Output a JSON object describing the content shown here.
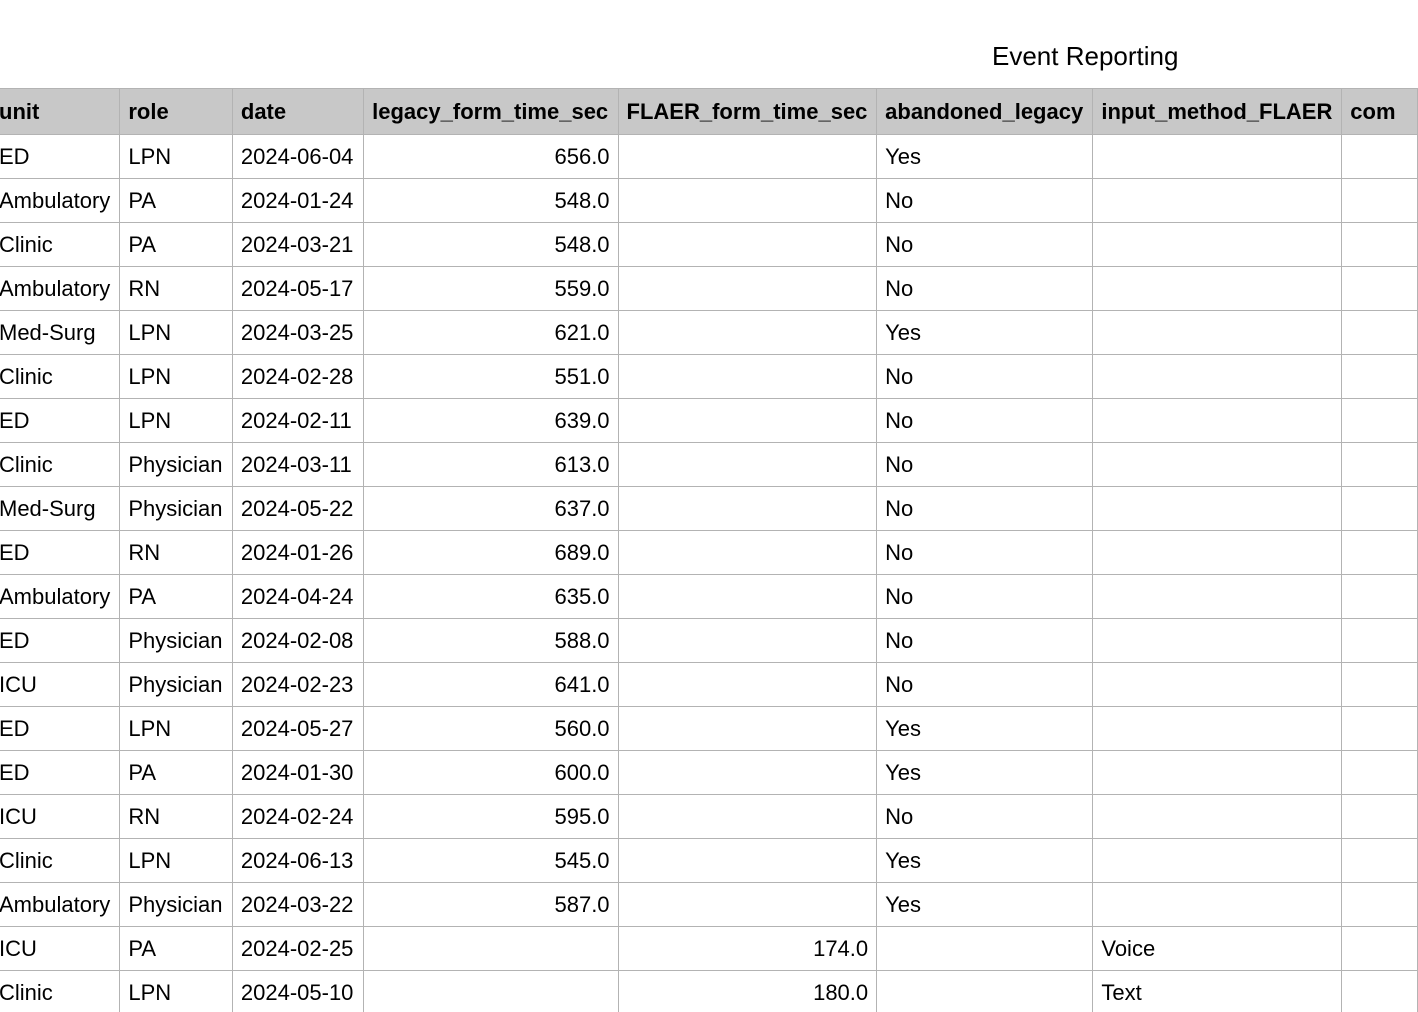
{
  "sheet": {
    "title": "Event Reporting"
  },
  "table": {
    "headers": {
      "unit": "unit",
      "role": "role",
      "date": "date",
      "legacy": "legacy_form_time_sec",
      "flaer": "FLAER_form_time_sec",
      "abandoned": "abandoned_legacy",
      "input": "input_method_FLAER",
      "comments": "com"
    },
    "rows": [
      {
        "unit": "ED",
        "role": "LPN",
        "date": "2024-06-04",
        "legacy": "656.0",
        "flaer": "",
        "abandoned": "Yes",
        "input": "",
        "comments": ""
      },
      {
        "unit": "Ambulatory",
        "role": "PA",
        "date": "2024-01-24",
        "legacy": "548.0",
        "flaer": "",
        "abandoned": "No",
        "input": "",
        "comments": ""
      },
      {
        "unit": "Clinic",
        "role": "PA",
        "date": "2024-03-21",
        "legacy": "548.0",
        "flaer": "",
        "abandoned": "No",
        "input": "",
        "comments": ""
      },
      {
        "unit": "Ambulatory",
        "role": "RN",
        "date": "2024-05-17",
        "legacy": "559.0",
        "flaer": "",
        "abandoned": "No",
        "input": "",
        "comments": ""
      },
      {
        "unit": "Med-Surg",
        "role": "LPN",
        "date": "2024-03-25",
        "legacy": "621.0",
        "flaer": "",
        "abandoned": "Yes",
        "input": "",
        "comments": ""
      },
      {
        "unit": "Clinic",
        "role": "LPN",
        "date": "2024-02-28",
        "legacy": "551.0",
        "flaer": "",
        "abandoned": "No",
        "input": "",
        "comments": ""
      },
      {
        "unit": "ED",
        "role": "LPN",
        "date": "2024-02-11",
        "legacy": "639.0",
        "flaer": "",
        "abandoned": "No",
        "input": "",
        "comments": ""
      },
      {
        "unit": "Clinic",
        "role": "Physician",
        "date": "2024-03-11",
        "legacy": "613.0",
        "flaer": "",
        "abandoned": "No",
        "input": "",
        "comments": ""
      },
      {
        "unit": "Med-Surg",
        "role": "Physician",
        "date": "2024-05-22",
        "legacy": "637.0",
        "flaer": "",
        "abandoned": "No",
        "input": "",
        "comments": ""
      },
      {
        "unit": "ED",
        "role": "RN",
        "date": "2024-01-26",
        "legacy": "689.0",
        "flaer": "",
        "abandoned": "No",
        "input": "",
        "comments": ""
      },
      {
        "unit": "Ambulatory",
        "role": "PA",
        "date": "2024-04-24",
        "legacy": "635.0",
        "flaer": "",
        "abandoned": "No",
        "input": "",
        "comments": ""
      },
      {
        "unit": "ED",
        "role": "Physician",
        "date": "2024-02-08",
        "legacy": "588.0",
        "flaer": "",
        "abandoned": "No",
        "input": "",
        "comments": ""
      },
      {
        "unit": "ICU",
        "role": "Physician",
        "date": "2024-02-23",
        "legacy": "641.0",
        "flaer": "",
        "abandoned": "No",
        "input": "",
        "comments": ""
      },
      {
        "unit": "ED",
        "role": "LPN",
        "date": "2024-05-27",
        "legacy": "560.0",
        "flaer": "",
        "abandoned": "Yes",
        "input": "",
        "comments": ""
      },
      {
        "unit": "ED",
        "role": "PA",
        "date": "2024-01-30",
        "legacy": "600.0",
        "flaer": "",
        "abandoned": "Yes",
        "input": "",
        "comments": ""
      },
      {
        "unit": "ICU",
        "role": "RN",
        "date": "2024-02-24",
        "legacy": "595.0",
        "flaer": "",
        "abandoned": "No",
        "input": "",
        "comments": ""
      },
      {
        "unit": "Clinic",
        "role": "LPN",
        "date": "2024-06-13",
        "legacy": "545.0",
        "flaer": "",
        "abandoned": "Yes",
        "input": "",
        "comments": ""
      },
      {
        "unit": "Ambulatory",
        "role": "Physician",
        "date": "2024-03-22",
        "legacy": "587.0",
        "flaer": "",
        "abandoned": "Yes",
        "input": "",
        "comments": ""
      },
      {
        "unit": "ICU",
        "role": "PA",
        "date": "2024-02-25",
        "legacy": "",
        "flaer": "174.0",
        "abandoned": "",
        "input": "Voice",
        "comments": ""
      },
      {
        "unit": "Clinic",
        "role": "LPN",
        "date": "2024-05-10",
        "legacy": "",
        "flaer": "180.0",
        "abandoned": "",
        "input": "Text",
        "comments": ""
      }
    ]
  }
}
